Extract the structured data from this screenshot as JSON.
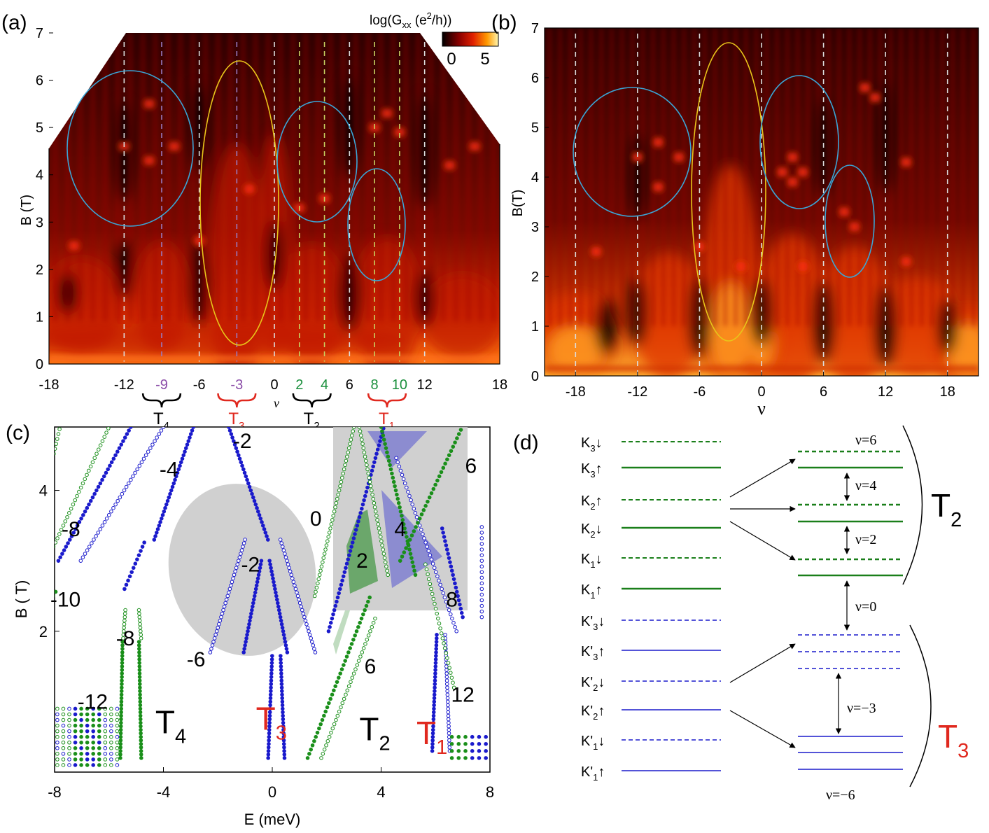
{
  "panels": {
    "a": {
      "label": "(a)",
      "ylabel": "B (T)",
      "xlabel": "ν",
      "colorbar_title": "log(G",
      "colorbar_sub": "xx",
      "colorbar_unit": " (e",
      "colorbar_sup": "2",
      "colorbar_tail": "/h))",
      "colorbar_ticks": [
        "0",
        "5"
      ],
      "yticks": [
        0,
        1,
        2,
        3,
        4,
        5,
        6,
        7
      ],
      "xticks": [
        {
          "v": -18,
          "t": "-18",
          "c": "#000"
        },
        {
          "v": -12,
          "t": "-12",
          "c": "#000"
        },
        {
          "v": -9,
          "t": "-9",
          "c": "#8b4da8"
        },
        {
          "v": -6,
          "t": "-6",
          "c": "#000"
        },
        {
          "v": -3,
          "t": "-3",
          "c": "#8b4da8"
        },
        {
          "v": 0,
          "t": "0",
          "c": "#000"
        },
        {
          "v": 2,
          "t": "2",
          "c": "#1a8f3c"
        },
        {
          "v": 4,
          "t": "4",
          "c": "#1a8f3c"
        },
        {
          "v": 6,
          "t": "6",
          "c": "#000"
        },
        {
          "v": 8,
          "t": "8",
          "c": "#1a8f3c"
        },
        {
          "v": 10,
          "t": "10",
          "c": "#1a8f3c"
        },
        {
          "v": 12,
          "t": "12",
          "c": "#000"
        },
        {
          "v": 18,
          "t": "18",
          "c": "#000"
        }
      ],
      "braces": [
        {
          "name": "T4",
          "main": "T",
          "sub": "4",
          "from": -10.5,
          "to": -7.5,
          "color": "#000"
        },
        {
          "name": "T3",
          "main": "T",
          "sub": "3",
          "from": -4.5,
          "to": -1.5,
          "color": "#e0281e"
        },
        {
          "name": "T2",
          "main": "T",
          "sub": "2",
          "from": 1.5,
          "to": 4.5,
          "color": "#000"
        },
        {
          "name": "T1",
          "main": "T",
          "sub": "1",
          "from": 7.5,
          "to": 10.5,
          "color": "#e0281e"
        }
      ]
    },
    "b": {
      "label": "(b)",
      "ylabel": "B(T)",
      "xlabel": "ν",
      "yticks": [
        0,
        1,
        2,
        3,
        4,
        5,
        6,
        7
      ],
      "xticks": [
        -18,
        -12,
        -6,
        0,
        6,
        12,
        18
      ]
    },
    "c": {
      "label": "(c)",
      "ylabel": "B ( T)",
      "xlabel": "E (meV)",
      "xticks": [
        -8,
        -4,
        0,
        4,
        8
      ],
      "yticks": [
        2,
        4
      ],
      "region_labels": [
        {
          "t": "-2",
          "x": -1.1,
          "y": 4.6
        },
        {
          "t": "-4",
          "x": -3.8,
          "y": 4.2
        },
        {
          "t": "0",
          "x": 1.6,
          "y": 3.5
        },
        {
          "t": "-8",
          "x": -7.4,
          "y": 3.35
        },
        {
          "t": "-2",
          "x": -0.8,
          "y": 2.85
        },
        {
          "t": "-10",
          "x": -7.6,
          "y": 2.35
        },
        {
          "t": "-8",
          "x": -5.4,
          "y": 1.8
        },
        {
          "t": "-6",
          "x": -2.8,
          "y": 1.5
        },
        {
          "t": "6",
          "x": 3.6,
          "y": 1.4
        },
        {
          "t": "-12",
          "x": -6.6,
          "y": 0.9
        },
        {
          "t": "12",
          "x": 7.0,
          "y": 1.0
        },
        {
          "t": "6",
          "x": 7.3,
          "y": 4.25
        },
        {
          "t": "4",
          "x": 4.7,
          "y": 3.35
        },
        {
          "t": "2",
          "x": 3.3,
          "y": 2.9
        },
        {
          "t": "8",
          "x": 6.6,
          "y": 2.35
        }
      ],
      "band_labels": [
        {
          "main": "T",
          "sub": "4",
          "x": -4.3,
          "y": 0.55,
          "color": "#000"
        },
        {
          "main": "T",
          "sub": "3",
          "x": -0.6,
          "y": 0.6,
          "color": "#e0281e"
        },
        {
          "main": "T",
          "sub": "2",
          "x": 3.2,
          "y": 0.45,
          "color": "#000"
        },
        {
          "main": "T",
          "sub": "1",
          "x": 5.3,
          "y": 0.4,
          "color": "#e0281e"
        }
      ]
    },
    "d": {
      "label": "(d)",
      "left_levels": [
        {
          "main": "K",
          "sub": "3",
          "spin": "↓",
          "style": "dash",
          "color": "green",
          "prime": false
        },
        {
          "main": "K",
          "sub": "3",
          "spin": "↑",
          "style": "solid",
          "color": "green",
          "prime": false
        },
        {
          "main": "K",
          "sub": "2",
          "spin": "↑",
          "style": "dash",
          "color": "green",
          "prime": false
        },
        {
          "main": "K",
          "sub": "2",
          "spin": "↓",
          "style": "solid",
          "color": "green",
          "prime": false
        },
        {
          "main": "K",
          "sub": "1",
          "spin": "↓",
          "style": "dash",
          "color": "green",
          "prime": false
        },
        {
          "main": "K",
          "sub": "1",
          "spin": "↑",
          "style": "solid",
          "color": "green",
          "prime": false
        },
        {
          "main": "K'",
          "sub": "3",
          "spin": "↓",
          "style": "dash",
          "color": "blue",
          "prime": true
        },
        {
          "main": "K'",
          "sub": "3",
          "spin": "↑",
          "style": "solid",
          "color": "blue",
          "prime": true
        },
        {
          "main": "K'",
          "sub": "2",
          "spin": "↓",
          "style": "dash",
          "color": "blue",
          "prime": true
        },
        {
          "main": "K'",
          "sub": "2",
          "spin": "↑",
          "style": "solid",
          "color": "blue",
          "prime": true
        },
        {
          "main": "K'",
          "sub": "1",
          "spin": "↓",
          "style": "dash",
          "color": "blue",
          "prime": true
        },
        {
          "main": "K'",
          "sub": "1",
          "spin": "↑",
          "style": "solid",
          "color": "blue",
          "prime": true
        }
      ],
      "gaps": [
        "ν=6",
        "ν=4",
        "ν=2",
        "ν=0",
        "ν=−3",
        "ν=−6"
      ],
      "groups": [
        {
          "main": "T",
          "sub": "2",
          "color": "#000"
        },
        {
          "main": "T",
          "sub": "3",
          "color": "#e0281e"
        }
      ]
    }
  },
  "colors": {
    "green": "#1a7f1a",
    "blue": "#1a1acc",
    "red": "#e0281e",
    "cyan": "#3aa6d6",
    "yellow": "#e8c51a"
  }
}
